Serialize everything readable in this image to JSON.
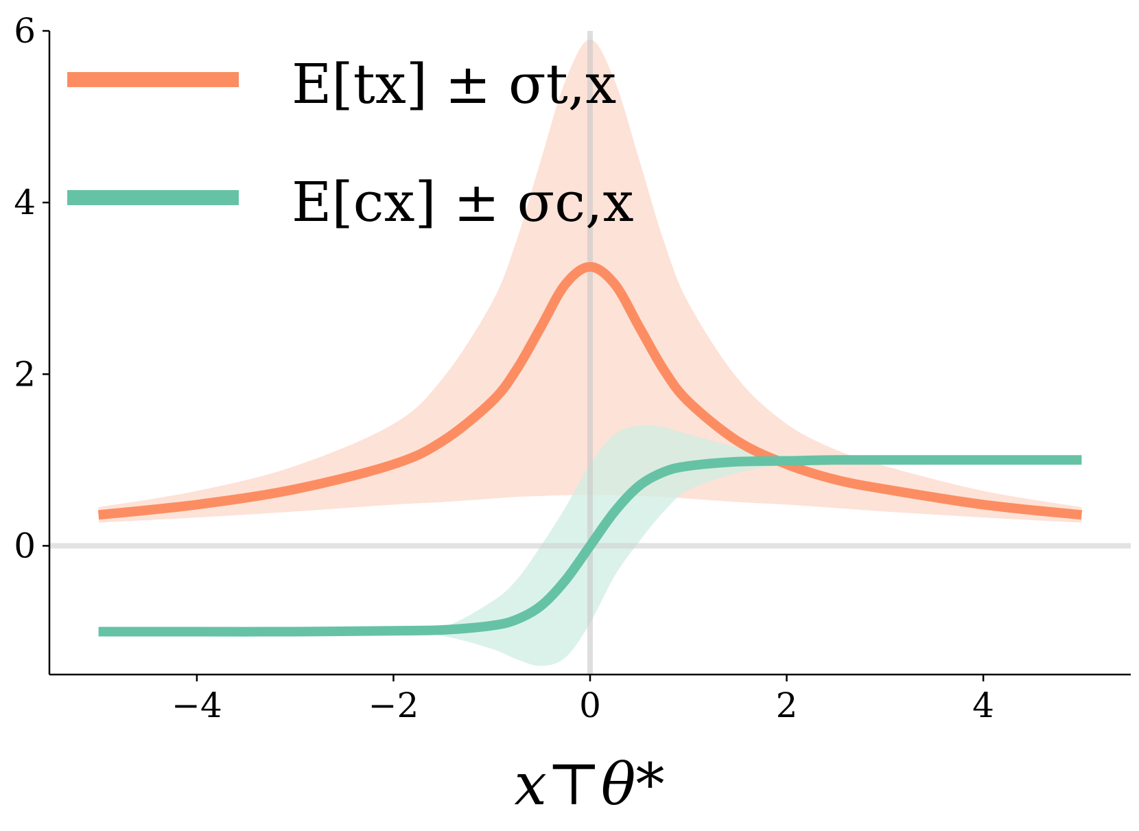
{
  "chart_data": {
    "type": "line",
    "xlabel": "x⊤θ*",
    "ylabel": "",
    "xlim": [
      -5.5,
      5.5
    ],
    "ylim": [
      -1.5,
      6.0
    ],
    "xticks": [
      -4,
      -2,
      0,
      2,
      4
    ],
    "yticks": [
      0,
      2,
      4,
      6
    ],
    "xtick_labels": [
      "−4",
      "−2",
      "0",
      "2",
      "4"
    ],
    "ytick_labels": [
      "0",
      "2",
      "4",
      "6"
    ],
    "reference_lines": {
      "vertical_x": 0,
      "horizontal_y": 0
    },
    "grid": false,
    "legend_position": "top-left",
    "x": [
      -5,
      -4,
      -3,
      -2,
      -1.5,
      -1,
      -0.75,
      -0.5,
      -0.25,
      0,
      0.25,
      0.5,
      0.75,
      1,
      1.5,
      2,
      2.5,
      3,
      4,
      5
    ],
    "series": [
      {
        "name": "E[tx] ± σt,x",
        "color": "#fc8d62",
        "band_color": "#fcd8ca",
        "mean": [
          0.36,
          0.48,
          0.66,
          0.95,
          1.22,
          1.68,
          2.05,
          2.55,
          3.05,
          3.25,
          3.05,
          2.55,
          2.05,
          1.68,
          1.22,
          0.95,
          0.77,
          0.66,
          0.48,
          0.36
        ],
        "lower": [
          0.27,
          0.33,
          0.4,
          0.48,
          0.51,
          0.55,
          0.57,
          0.58,
          0.59,
          0.59,
          0.59,
          0.58,
          0.57,
          0.55,
          0.51,
          0.48,
          0.44,
          0.4,
          0.33,
          0.27
        ],
        "upper": [
          0.45,
          0.64,
          0.93,
          1.42,
          1.95,
          2.83,
          3.55,
          4.5,
          5.42,
          5.9,
          5.42,
          4.5,
          3.55,
          2.83,
          1.95,
          1.42,
          1.12,
          0.93,
          0.64,
          0.45
        ]
      },
      {
        "name": "E[cx] ± σc,x",
        "color": "#66c2a5",
        "band_color": "#cfede3",
        "mean": [
          -1.0,
          -1.0,
          -1.0,
          -0.99,
          -0.98,
          -0.93,
          -0.86,
          -0.7,
          -0.4,
          0.0,
          0.4,
          0.7,
          0.86,
          0.93,
          0.98,
          0.99,
          1.0,
          1.0,
          1.0,
          1.0
        ],
        "lower": [
          -1.0,
          -1.0,
          -1.0,
          -1.0,
          -1.05,
          -1.2,
          -1.32,
          -1.4,
          -1.3,
          -0.9,
          -0.35,
          0.05,
          0.4,
          0.65,
          0.85,
          0.95,
          0.99,
          1.0,
          1.0,
          1.0
        ],
        "upper": [
          -1.0,
          -1.0,
          -1.0,
          -0.99,
          -0.95,
          -0.65,
          -0.4,
          0.0,
          0.45,
          0.95,
          1.3,
          1.4,
          1.38,
          1.3,
          1.15,
          1.05,
          1.01,
          1.0,
          1.0,
          1.0
        ]
      }
    ]
  }
}
